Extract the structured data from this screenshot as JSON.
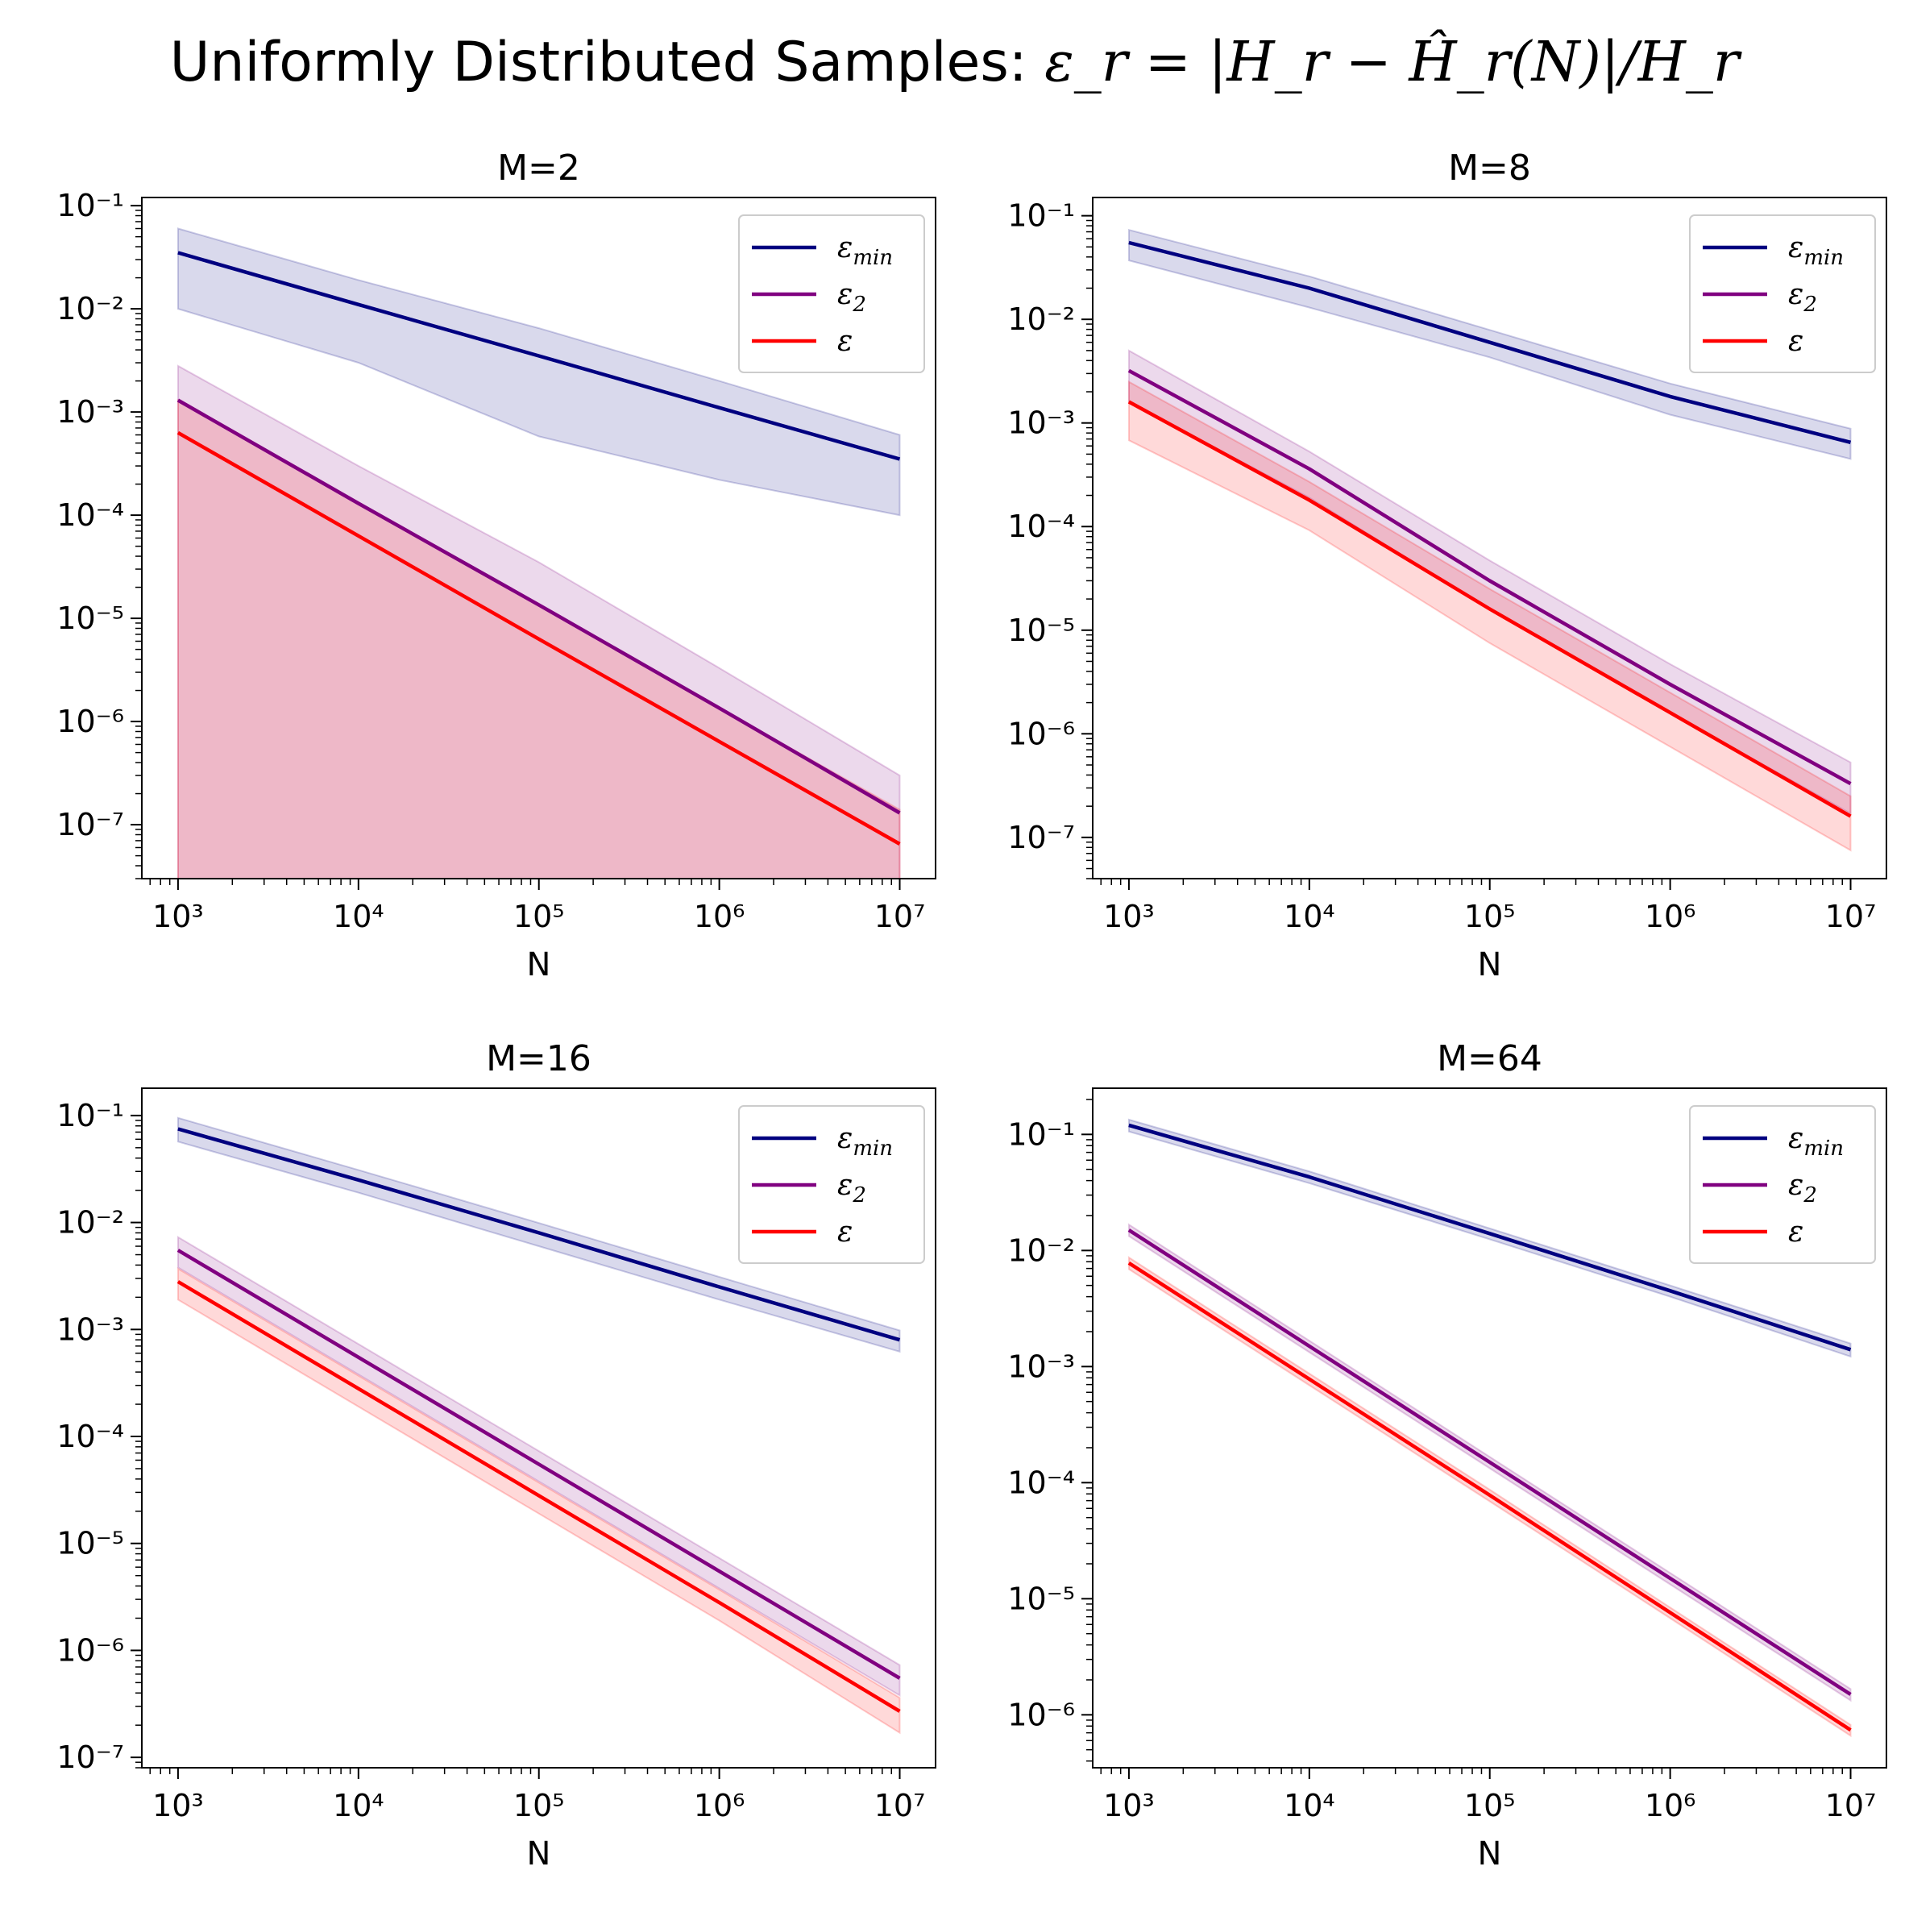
{
  "figure": {
    "title_prefix": "Uniformly Distributed Samples: ",
    "title_formula": "ε_r = |H_r − Ĥ_r(N)|/H_r"
  },
  "chart_data": [
    {
      "type": "line",
      "title": "M=2",
      "xlabel": "N",
      "ylabel": "",
      "xscale": "log",
      "yscale": "log",
      "xlim": [
        630,
        15800000
      ],
      "ylim": [
        3e-08,
        0.12
      ],
      "x_ticks": [
        1000,
        10000,
        100000,
        1000000,
        10000000
      ],
      "y_ticks": [
        1e-07,
        1e-06,
        1e-05,
        0.0001,
        0.001,
        0.01,
        0.1
      ],
      "legend": "top-right",
      "x": [
        1000,
        10000,
        100000,
        1000000,
        10000000
      ],
      "series": [
        {
          "name": "ε_min",
          "color": "#000080",
          "values": [
            0.035,
            0.011,
            0.0035,
            0.0011,
            0.00035
          ],
          "lower": [
            0.01,
            0.003,
            0.00058,
            0.00022,
            0.0001
          ],
          "upper": [
            0.06,
            0.019,
            0.0065,
            0.002,
            0.0006
          ]
        },
        {
          "name": "ε_2",
          "color": "#800080",
          "values": [
            0.0013,
            0.00013,
            1.35e-05,
            1.35e-06,
            1.3e-07
          ],
          "lower": [
            1e-10,
            1e-10,
            1e-10,
            1e-10,
            1e-10
          ],
          "upper": [
            0.0028,
            0.0003,
            3.5e-05,
            3.3e-06,
            3e-07
          ]
        },
        {
          "name": "ε",
          "color": "#ff0000",
          "values": [
            0.00063,
            6.3e-05,
            6.3e-06,
            6.4e-07,
            6.5e-08
          ],
          "lower": [
            1e-10,
            1e-10,
            1e-10,
            1e-10,
            1e-10
          ],
          "upper": [
            0.0013,
            0.00013,
            1.35e-05,
            1.35e-06,
            1.4e-07
          ]
        }
      ]
    },
    {
      "type": "line",
      "title": "M=8",
      "xlabel": "N",
      "ylabel": "",
      "xscale": "log",
      "yscale": "log",
      "xlim": [
        630,
        15800000
      ],
      "ylim": [
        4e-08,
        0.15
      ],
      "x_ticks": [
        1000,
        10000,
        100000,
        1000000,
        10000000
      ],
      "y_ticks": [
        1e-07,
        1e-06,
        1e-05,
        0.0001,
        0.001,
        0.01,
        0.1
      ],
      "legend": "top-right",
      "x": [
        1000,
        10000,
        100000,
        1000000,
        10000000
      ],
      "series": [
        {
          "name": "ε_min",
          "color": "#000080",
          "values": [
            0.055,
            0.02,
            0.006,
            0.0018,
            0.00065
          ],
          "lower": [
            0.037,
            0.013,
            0.0043,
            0.0012,
            0.00045
          ],
          "upper": [
            0.073,
            0.026,
            0.0079,
            0.0024,
            0.00088
          ]
        },
        {
          "name": "ε_2",
          "color": "#800080",
          "values": [
            0.0032,
            0.00036,
            3e-05,
            3e-06,
            3.3e-07
          ],
          "lower": [
            0.0016,
            0.00019,
            1.6e-05,
            1.6e-06,
            1.7e-07
          ],
          "upper": [
            0.005,
            0.00053,
            4.7e-05,
            4.7e-06,
            5.3e-07
          ]
        },
        {
          "name": "ε",
          "color": "#ff0000",
          "values": [
            0.0016,
            0.00018,
            1.6e-05,
            1.6e-06,
            1.6e-07
          ],
          "lower": [
            0.00068,
            9.2e-05,
            7.5e-06,
            7.5e-07,
            7.5e-08
          ],
          "upper": [
            0.0025,
            0.00027,
            2.5e-05,
            2.5e-06,
            2.5e-07
          ]
        }
      ]
    },
    {
      "type": "line",
      "title": "M=16",
      "xlabel": "N",
      "ylabel": "",
      "xscale": "log",
      "yscale": "log",
      "xlim": [
        630,
        15800000
      ],
      "ylim": [
        8e-08,
        0.18
      ],
      "x_ticks": [
        1000,
        10000,
        100000,
        1000000,
        10000000
      ],
      "y_ticks": [
        1e-07,
        1e-06,
        1e-05,
        0.0001,
        0.001,
        0.01,
        0.1
      ],
      "legend": "top-right",
      "x": [
        1000,
        10000,
        100000,
        1000000,
        10000000
      ],
      "series": [
        {
          "name": "ε_min",
          "color": "#000080",
          "values": [
            0.075,
            0.025,
            0.008,
            0.0025,
            0.0008
          ],
          "lower": [
            0.057,
            0.019,
            0.006,
            0.0019,
            0.00062
          ],
          "upper": [
            0.095,
            0.031,
            0.0099,
            0.0031,
            0.00098
          ]
        },
        {
          "name": "ε_2",
          "color": "#800080",
          "values": [
            0.0055,
            0.00055,
            5.5e-05,
            5.5e-06,
            5.5e-07
          ],
          "lower": [
            0.0038,
            0.00038,
            3.8e-05,
            3.8e-06,
            3.8e-07
          ],
          "upper": [
            0.0073,
            0.00073,
            7.3e-05,
            7.3e-06,
            7.3e-07
          ]
        },
        {
          "name": "ε",
          "color": "#ff0000",
          "values": [
            0.0028,
            0.00028,
            2.8e-05,
            2.8e-06,
            2.7e-07
          ],
          "lower": [
            0.0019,
            0.00019,
            1.9e-05,
            1.9e-06,
            1.7e-07
          ],
          "upper": [
            0.0037,
            0.00037,
            3.7e-05,
            3.7e-06,
            3.6e-07
          ]
        }
      ]
    },
    {
      "type": "line",
      "title": "M=64",
      "xlabel": "N",
      "ylabel": "",
      "xscale": "log",
      "yscale": "log",
      "xlim": [
        630,
        15800000
      ],
      "ylim": [
        3.5e-07,
        0.25
      ],
      "x_ticks": [
        1000,
        10000,
        100000,
        1000000,
        10000000
      ],
      "y_ticks": [
        1e-06,
        1e-05,
        0.0001,
        0.001,
        0.01,
        0.1
      ],
      "legend": "top-right",
      "x": [
        1000,
        10000,
        100000,
        1000000,
        10000000
      ],
      "series": [
        {
          "name": "ε_min",
          "color": "#000080",
          "values": [
            0.12,
            0.043,
            0.014,
            0.0045,
            0.0014
          ],
          "lower": [
            0.106,
            0.038,
            0.0125,
            0.004,
            0.00122
          ],
          "upper": [
            0.134,
            0.048,
            0.0155,
            0.005,
            0.00158
          ]
        },
        {
          "name": "ε_2",
          "color": "#800080",
          "values": [
            0.015,
            0.0015,
            0.00015,
            1.5e-05,
            1.5e-06
          ],
          "lower": [
            0.0133,
            0.00133,
            0.000133,
            1.33e-05,
            1.33e-06
          ],
          "upper": [
            0.0167,
            0.00167,
            0.000167,
            1.67e-05,
            1.67e-06
          ]
        },
        {
          "name": "ε",
          "color": "#ff0000",
          "values": [
            0.0078,
            0.00078,
            7.8e-05,
            7.6e-06,
            7.4e-07
          ],
          "lower": [
            0.0069,
            0.00069,
            6.9e-05,
            6.8e-06,
            6.6e-07
          ],
          "upper": [
            0.0087,
            0.00087,
            8.7e-05,
            8.4e-06,
            8.2e-07
          ]
        }
      ]
    }
  ]
}
